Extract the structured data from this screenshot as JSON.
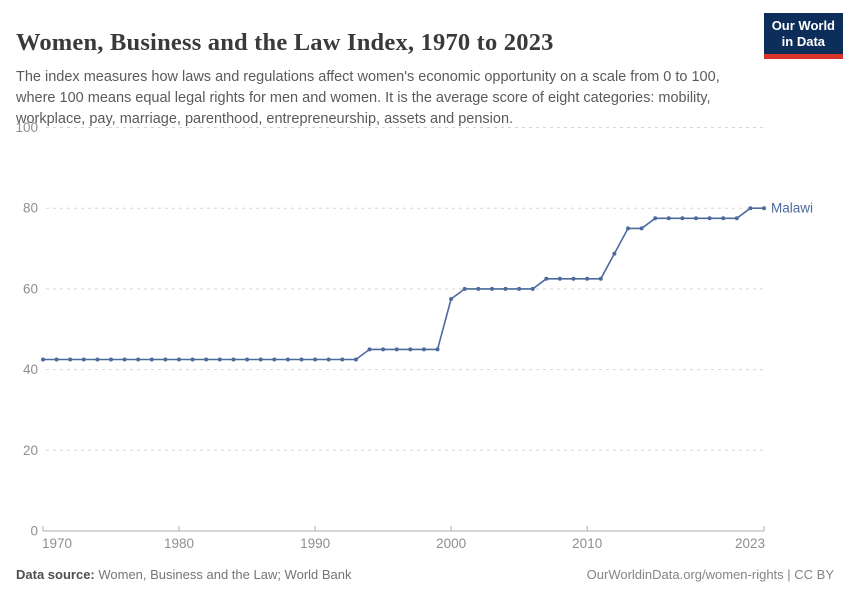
{
  "header": {
    "title": "Women, Business and the Law Index, 1970 to 2023",
    "subtitle": "The index measures how laws and regulations affect women's economic opportunity on a scale from 0 to 100, where 100 means equal legal rights for men and women. It is the average score of eight categories: mobility, workplace, pay, marriage, parenthood, entrepreneurship, assets and pension.",
    "logo": {
      "line1": "Our World",
      "line2": "in Data",
      "bg_color": "#0d2e5a",
      "accent_color": "#d8352a"
    }
  },
  "footer": {
    "source_label": "Data source:",
    "source_value": " Women, Business and the Law; World Bank",
    "credit": "OurWorldinData.org/women-rights | CC BY"
  },
  "chart_data": {
    "type": "line",
    "title": "Women, Business and the Law Index, 1970 to 2023",
    "xlabel": "",
    "ylabel": "",
    "xlim": [
      1970,
      2023
    ],
    "ylim": [
      0,
      100
    ],
    "yticks": [
      0,
      20,
      40,
      60,
      80,
      100
    ],
    "xticks": [
      1970,
      1980,
      1990,
      2000,
      2010,
      2023
    ],
    "grid": "horizontal-dashed",
    "grid_color": "#d6d6d6",
    "axis_color": "#adadad",
    "axis_text_color": "#8f8f8f",
    "legend_position": "end-of-line-label",
    "series": [
      {
        "name": "Malawi",
        "color": "#4c6a9c",
        "points": [
          [
            1970,
            42.5
          ],
          [
            1971,
            42.5
          ],
          [
            1972,
            42.5
          ],
          [
            1973,
            42.5
          ],
          [
            1974,
            42.5
          ],
          [
            1975,
            42.5
          ],
          [
            1976,
            42.5
          ],
          [
            1977,
            42.5
          ],
          [
            1978,
            42.5
          ],
          [
            1979,
            42.5
          ],
          [
            1980,
            42.5
          ],
          [
            1981,
            42.5
          ],
          [
            1982,
            42.5
          ],
          [
            1983,
            42.5
          ],
          [
            1984,
            42.5
          ],
          [
            1985,
            42.5
          ],
          [
            1986,
            42.5
          ],
          [
            1987,
            42.5
          ],
          [
            1988,
            42.5
          ],
          [
            1989,
            42.5
          ],
          [
            1990,
            42.5
          ],
          [
            1991,
            42.5
          ],
          [
            1992,
            42.5
          ],
          [
            1993,
            42.5
          ],
          [
            1994,
            45
          ],
          [
            1995,
            45
          ],
          [
            1996,
            45
          ],
          [
            1997,
            45
          ],
          [
            1998,
            45
          ],
          [
            1999,
            45
          ],
          [
            2000,
            57.5
          ],
          [
            2001,
            60
          ],
          [
            2002,
            60
          ],
          [
            2003,
            60
          ],
          [
            2004,
            60
          ],
          [
            2005,
            60
          ],
          [
            2006,
            60
          ],
          [
            2007,
            62.5
          ],
          [
            2008,
            62.5
          ],
          [
            2009,
            62.5
          ],
          [
            2010,
            62.5
          ],
          [
            2011,
            62.5
          ],
          [
            2012,
            68.75
          ],
          [
            2013,
            75
          ],
          [
            2014,
            75
          ],
          [
            2015,
            77.5
          ],
          [
            2016,
            77.5
          ],
          [
            2017,
            77.5
          ],
          [
            2018,
            77.5
          ],
          [
            2019,
            77.5
          ],
          [
            2020,
            77.5
          ],
          [
            2021,
            77.5
          ],
          [
            2022,
            80
          ],
          [
            2023,
            80
          ]
        ]
      }
    ]
  }
}
